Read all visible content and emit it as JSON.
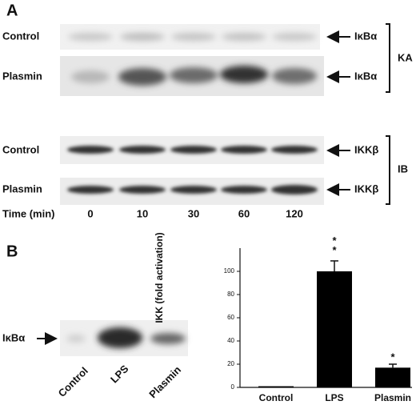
{
  "panels": {
    "a": "A",
    "b": "B"
  },
  "blot_a": {
    "rows": [
      "Control",
      "Plasmin",
      "Control",
      "Plasmin"
    ],
    "bands": [
      "IκBα",
      "IκBα",
      "IKKβ",
      "IKKβ"
    ],
    "groups": [
      "KA",
      "IB"
    ],
    "time_label": "Time (min)",
    "times": [
      "0",
      "10",
      "30",
      "60",
      "120"
    ]
  },
  "blot_b": {
    "band": "IκBα",
    "lanes": [
      "Control",
      "LPS",
      "Plasmin"
    ]
  },
  "chart_data": {
    "type": "bar",
    "ylabel": "IKK (fold activation)",
    "categories": [
      "Control",
      "LPS",
      "Plasmin"
    ],
    "values": [
      1,
      100,
      17
    ],
    "errors": [
      0,
      9,
      3
    ],
    "annotations": [
      "* *",
      "*"
    ],
    "color": "#000000",
    "ylim": [
      0,
      120
    ],
    "yticks": [
      0,
      20,
      40,
      60,
      80,
      100
    ],
    "grid": false
  }
}
